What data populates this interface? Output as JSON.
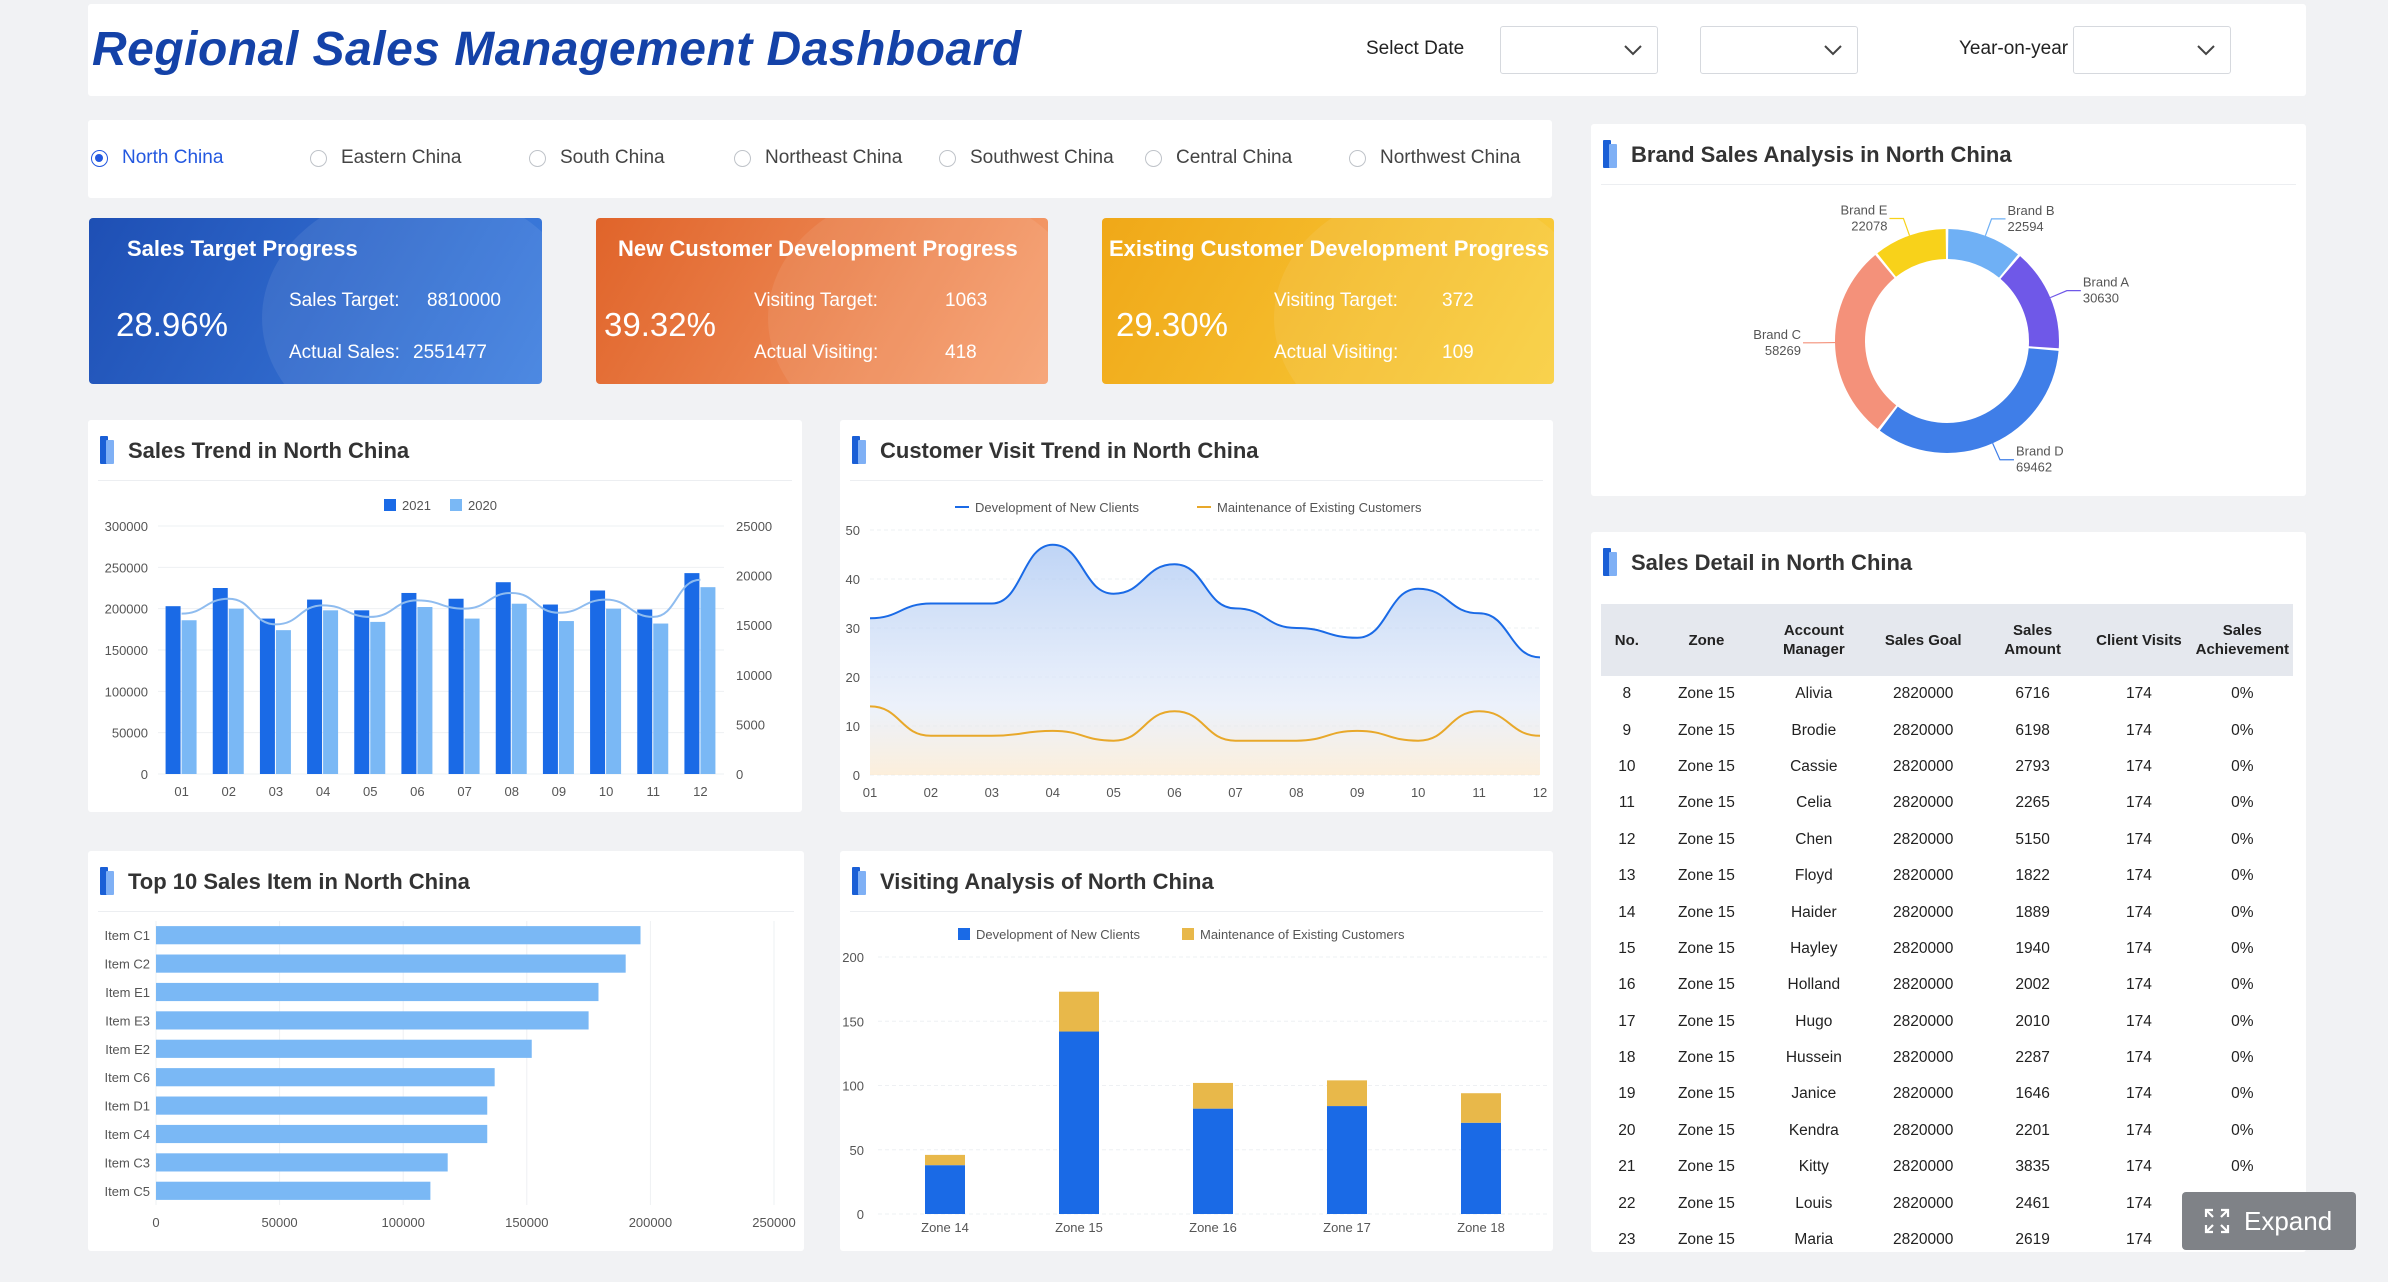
{
  "header": {
    "title": "Regional Sales Management Dashboard",
    "select_date_label": "Select Date",
    "date_select_1": "",
    "date_select_2": "",
    "yoy_label": "Year-on-year",
    "yoy_select": ""
  },
  "regions": [
    {
      "label": "North China",
      "selected": true
    },
    {
      "label": "Eastern China",
      "selected": false
    },
    {
      "label": "South China",
      "selected": false
    },
    {
      "label": "Northeast China",
      "selected": false
    },
    {
      "label": "Southwest China",
      "selected": false
    },
    {
      "label": "Central China",
      "selected": false
    },
    {
      "label": "Northwest China",
      "selected": false
    }
  ],
  "kpis": [
    {
      "title": "Sales Target Progress",
      "percent": "28.96%",
      "line1_label": "Sales Target:",
      "line1_value": "8810000",
      "line2_label": "Actual Sales:",
      "line2_value": "2551477",
      "color_from": "#1e4fb4",
      "color_to": "#3e7fe0"
    },
    {
      "title": "New Customer Development Progress",
      "percent": "39.32%",
      "line1_label": "Visiting Target:",
      "line1_value": "1063",
      "line2_label": "Actual Visiting:",
      "line2_value": "418",
      "color_from": "#e0642a",
      "color_to": "#f6a070"
    },
    {
      "title": "Existing Customer Development Progress",
      "percent": "29.30%",
      "line1_label": "Visiting Target:",
      "line1_value": "372",
      "line2_label": "Actual Visiting:",
      "line2_value": "109",
      "color_from": "#f0a818",
      "color_to": "#f9cf3e"
    }
  ],
  "panels": {
    "sales_trend": "Sales Trend in North China",
    "visit_trend": "Customer Visit Trend in North China",
    "brand": "Brand Sales Analysis in North China",
    "top10": "Top 10 Sales Item in North China",
    "visiting": "Visiting Analysis of North China",
    "detail": "Sales Detail in North China"
  },
  "chart_data": [
    {
      "id": "sales_trend",
      "type": "bar",
      "categories": [
        "01",
        "02",
        "03",
        "04",
        "05",
        "06",
        "07",
        "08",
        "09",
        "10",
        "11",
        "12"
      ],
      "series": [
        {
          "name": "2021",
          "color": "#1a6ae6",
          "values": [
            203000,
            225000,
            188000,
            211000,
            198000,
            219000,
            212000,
            232000,
            205000,
            222000,
            199000,
            243000
          ]
        },
        {
          "name": "2020",
          "color": "#7ab8f5",
          "values": [
            186000,
            200000,
            174000,
            198000,
            184000,
            202000,
            188000,
            206000,
            185000,
            200000,
            182000,
            226000
          ]
        }
      ],
      "line": {
        "values": [
          194000,
          212000,
          181000,
          204000,
          190000,
          210000,
          200000,
          219000,
          195000,
          211000,
          190000,
          235000
        ]
      },
      "ylim": [
        0,
        300000
      ],
      "yticks": [
        0,
        50000,
        100000,
        150000,
        200000,
        250000,
        300000
      ],
      "y2ticks": [
        0,
        5000,
        10000,
        15000,
        20000,
        25000
      ],
      "grid": true,
      "legend": "top-center"
    },
    {
      "id": "visit_trend",
      "type": "area",
      "categories": [
        "01",
        "02",
        "03",
        "04",
        "05",
        "06",
        "07",
        "08",
        "09",
        "10",
        "11",
        "12"
      ],
      "series": [
        {
          "name": "Development of New Clients",
          "color": "#1a6ae6",
          "values": [
            32,
            35,
            35,
            47,
            37,
            43,
            34,
            30,
            28,
            38,
            33,
            24
          ]
        },
        {
          "name": "Maintenance of Existing Customers",
          "color": "#e8a82a",
          "values": [
            14,
            8,
            8,
            9,
            7,
            13,
            7,
            7,
            9,
            7,
            13,
            8
          ]
        }
      ],
      "ylim": [
        0,
        50
      ],
      "yticks": [
        0,
        10,
        20,
        30,
        40,
        50
      ],
      "grid": true,
      "legend": "top-center"
    },
    {
      "id": "brand",
      "type": "pie",
      "labels": [
        "Brand A",
        "Brand B",
        "Brand C",
        "Brand D",
        "Brand E"
      ],
      "values": [
        30630,
        22594,
        58269,
        69462,
        22078
      ],
      "order": [
        "Brand B",
        "Brand A",
        "Brand D",
        "Brand C",
        "Brand E"
      ],
      "colors": {
        "Brand A": "#6f58e8",
        "Brand B": "#6fb0f5",
        "Brand C": "#f4917a",
        "Brand D": "#3f7ee8",
        "Brand E": "#f8d21a"
      }
    },
    {
      "id": "top10",
      "type": "bar",
      "orientation": "horizontal",
      "categories": [
        "Item C1",
        "Item C2",
        "Item E1",
        "Item E3",
        "Item E2",
        "Item C6",
        "Item D1",
        "Item C4",
        "Item C3",
        "Item C5"
      ],
      "values": [
        196000,
        190000,
        179000,
        175000,
        152000,
        137000,
        134000,
        134000,
        118000,
        111000
      ],
      "xlim": [
        0,
        250000
      ],
      "xticks": [
        0,
        50000,
        100000,
        150000,
        200000,
        250000
      ],
      "color": "#7ab8f5"
    },
    {
      "id": "visiting",
      "type": "bar",
      "stacked": true,
      "categories": [
        "Zone 14",
        "Zone 15",
        "Zone 16",
        "Zone 17",
        "Zone 18"
      ],
      "series": [
        {
          "name": "Development of New Clients",
          "color": "#1a6ae6",
          "values": [
            38,
            142,
            82,
            84,
            71
          ]
        },
        {
          "name": "Maintenance of Existing Customers",
          "color": "#e8b84a",
          "values": [
            8,
            31,
            20,
            20,
            23
          ]
        }
      ],
      "ylim": [
        0,
        200
      ],
      "yticks": [
        0,
        50,
        100,
        150,
        200
      ],
      "grid": true,
      "legend": "top-center"
    }
  ],
  "sales_detail": {
    "columns": [
      "No.",
      "Zone",
      "Account Manager",
      "Sales Goal",
      "Sales Amount",
      "Client Visits",
      "Sales Achievement"
    ],
    "rows": [
      [
        "8",
        "Zone 15",
        "Alivia",
        "2820000",
        "6716",
        "174",
        "0%"
      ],
      [
        "9",
        "Zone 15",
        "Brodie",
        "2820000",
        "6198",
        "174",
        "0%"
      ],
      [
        "10",
        "Zone 15",
        "Cassie",
        "2820000",
        "2793",
        "174",
        "0%"
      ],
      [
        "11",
        "Zone 15",
        "Celia",
        "2820000",
        "2265",
        "174",
        "0%"
      ],
      [
        "12",
        "Zone 15",
        "Chen",
        "2820000",
        "5150",
        "174",
        "0%"
      ],
      [
        "13",
        "Zone 15",
        "Floyd",
        "2820000",
        "1822",
        "174",
        "0%"
      ],
      [
        "14",
        "Zone 15",
        "Haider",
        "2820000",
        "1889",
        "174",
        "0%"
      ],
      [
        "15",
        "Zone 15",
        "Hayley",
        "2820000",
        "1940",
        "174",
        "0%"
      ],
      [
        "16",
        "Zone 15",
        "Holland",
        "2820000",
        "2002",
        "174",
        "0%"
      ],
      [
        "17",
        "Zone 15",
        "Hugo",
        "2820000",
        "2010",
        "174",
        "0%"
      ],
      [
        "18",
        "Zone 15",
        "Hussein",
        "2820000",
        "2287",
        "174",
        "0%"
      ],
      [
        "19",
        "Zone 15",
        "Janice",
        "2820000",
        "1646",
        "174",
        "0%"
      ],
      [
        "20",
        "Zone 15",
        "Kendra",
        "2820000",
        "2201",
        "174",
        "0%"
      ],
      [
        "21",
        "Zone 15",
        "Kitty",
        "2820000",
        "3835",
        "174",
        "0%"
      ],
      [
        "22",
        "Zone 15",
        "Louis",
        "2820000",
        "2461",
        "174",
        "0%"
      ],
      [
        "23",
        "Zone 15",
        "Maria",
        "2820000",
        "2619",
        "174",
        "0%"
      ]
    ]
  },
  "expand_button": {
    "label": "Expand",
    "icon": "expand-icon"
  }
}
